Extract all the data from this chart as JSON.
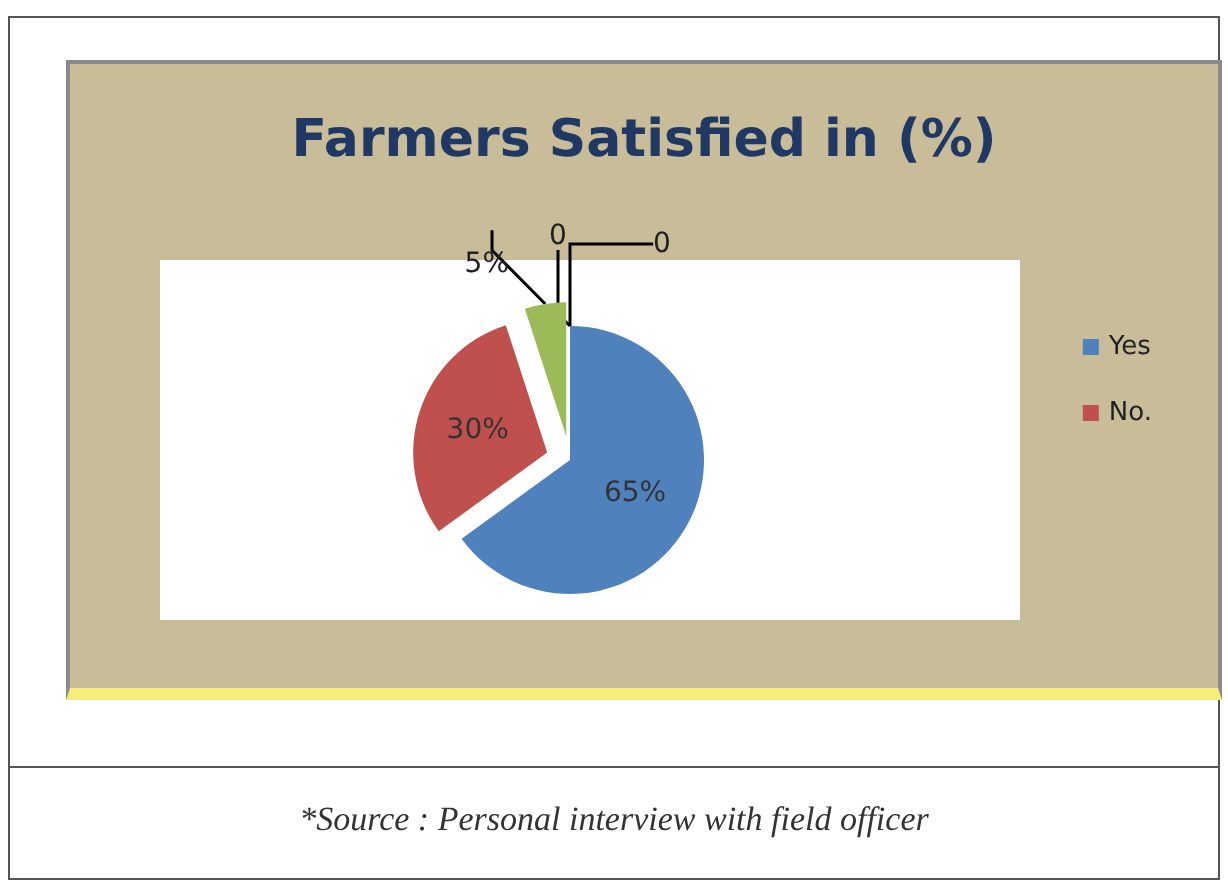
{
  "chart_data": {
    "type": "pie",
    "title": "Farmers Satisfied in (%)",
    "categories": [
      "Yes",
      "No.",
      null,
      null,
      null
    ],
    "values": [
      65,
      30,
      5,
      0,
      0
    ],
    "colors": [
      "#4f81bd",
      "#c0504d",
      "#9bbb59",
      "#8064a2",
      "#4bacc6"
    ],
    "value_labels": [
      "65%",
      "30%",
      "5%",
      "0",
      "0"
    ],
    "legend": "right",
    "annotations": [
      "*Source : Personal interview with field officer"
    ]
  }
}
